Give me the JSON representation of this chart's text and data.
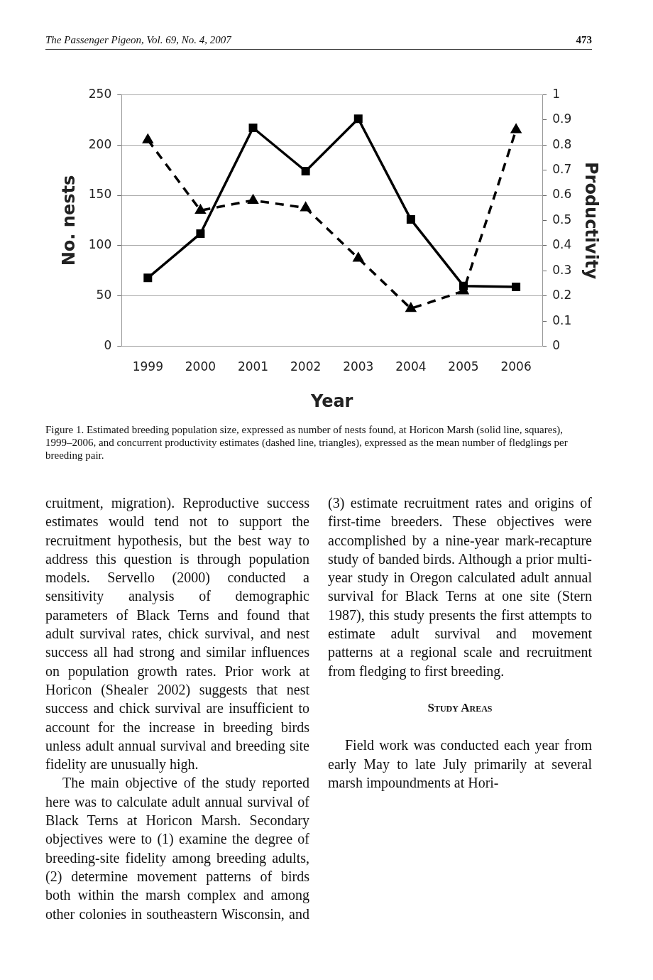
{
  "chart_data": {
    "type": "line",
    "xlabel": "Year",
    "ylabel": "No. nests",
    "y2label": "Productivity",
    "categories": [
      "1999",
      "2000",
      "2001",
      "2002",
      "2003",
      "2004",
      "2005",
      "2006"
    ],
    "series": [
      {
        "color": "#000000",
        "marker": "square",
        "line_style": "solid",
        "values": [
          68,
          112,
          217,
          174,
          226,
          126,
          60,
          59
        ]
      },
      {
        "color": "#000000",
        "marker": "triangle",
        "line_style": "dashed",
        "axis": "y2",
        "values": [
          0.82,
          0.54,
          0.58,
          0.55,
          0.35,
          0.15,
          0.22,
          0.86
        ]
      }
    ],
    "ylim": [
      0,
      250
    ],
    "yticks": [
      0,
      50,
      100,
      150,
      200,
      250
    ],
    "y2lim": [
      0,
      1
    ],
    "y2ticks": [
      0,
      0.1,
      0.2,
      0.3,
      0.4,
      0.5,
      0.6,
      0.7,
      0.8,
      0.9,
      1
    ],
    "grid": "y",
    "annotations": [
      "The Passenger Pigeon, Vol. 69, No. 4, 2007",
      "473",
      "Figure 1. Estimated breeding population size, expressed as number of nests found, at Horicon Marsh (solid line, squares), 1999–2006, and concurrent productivity estimates (dashed line, triangles), expressed as the mean number of fledglings per breeding pair.",
      "cruitment, migration). Reproductive success estimates would tend not to support the recruitment hypothesis, but the best way to address this question is through population models. Servello (2000) conducted a sensitivity analysis of demographic parameters of Black Terns and found that adult survival rates, chick survival, and nest success all had strong and similar influences on population growth rates. Prior work at Horicon (Shealer 2002) suggests that nest success and chick survival are insufficient to account for the increase in breeding birds unless adult annual survival and breeding site fidelity are unusually high.",
      "The main objective of the study reported here was to calculate adult annual survival of Black Terns at Horicon Marsh. Secondary objectives were to (1) examine the degree of breeding-site fidelity among breeding adults, (2) determine movement patterns of birds both within the marsh complex and among other colonies in southeastern Wisconsin, and (3) estimate recruitment rates and origins of first-time breeders. These objectives were accomplished by a nine-year mark-recapture study of banded birds. Although a prior multi-year study in Oregon calculated adult annual survival for Black Terns at one site (Stern 1987), this study presents the first attempts to estimate adult survival and movement patterns at a regional scale and recruitment from fledging to first breeding.",
      "Study Areas",
      "Field work was conducted each year from early May to late July primarily at several marsh impoundments at Hori-"
    ]
  }
}
